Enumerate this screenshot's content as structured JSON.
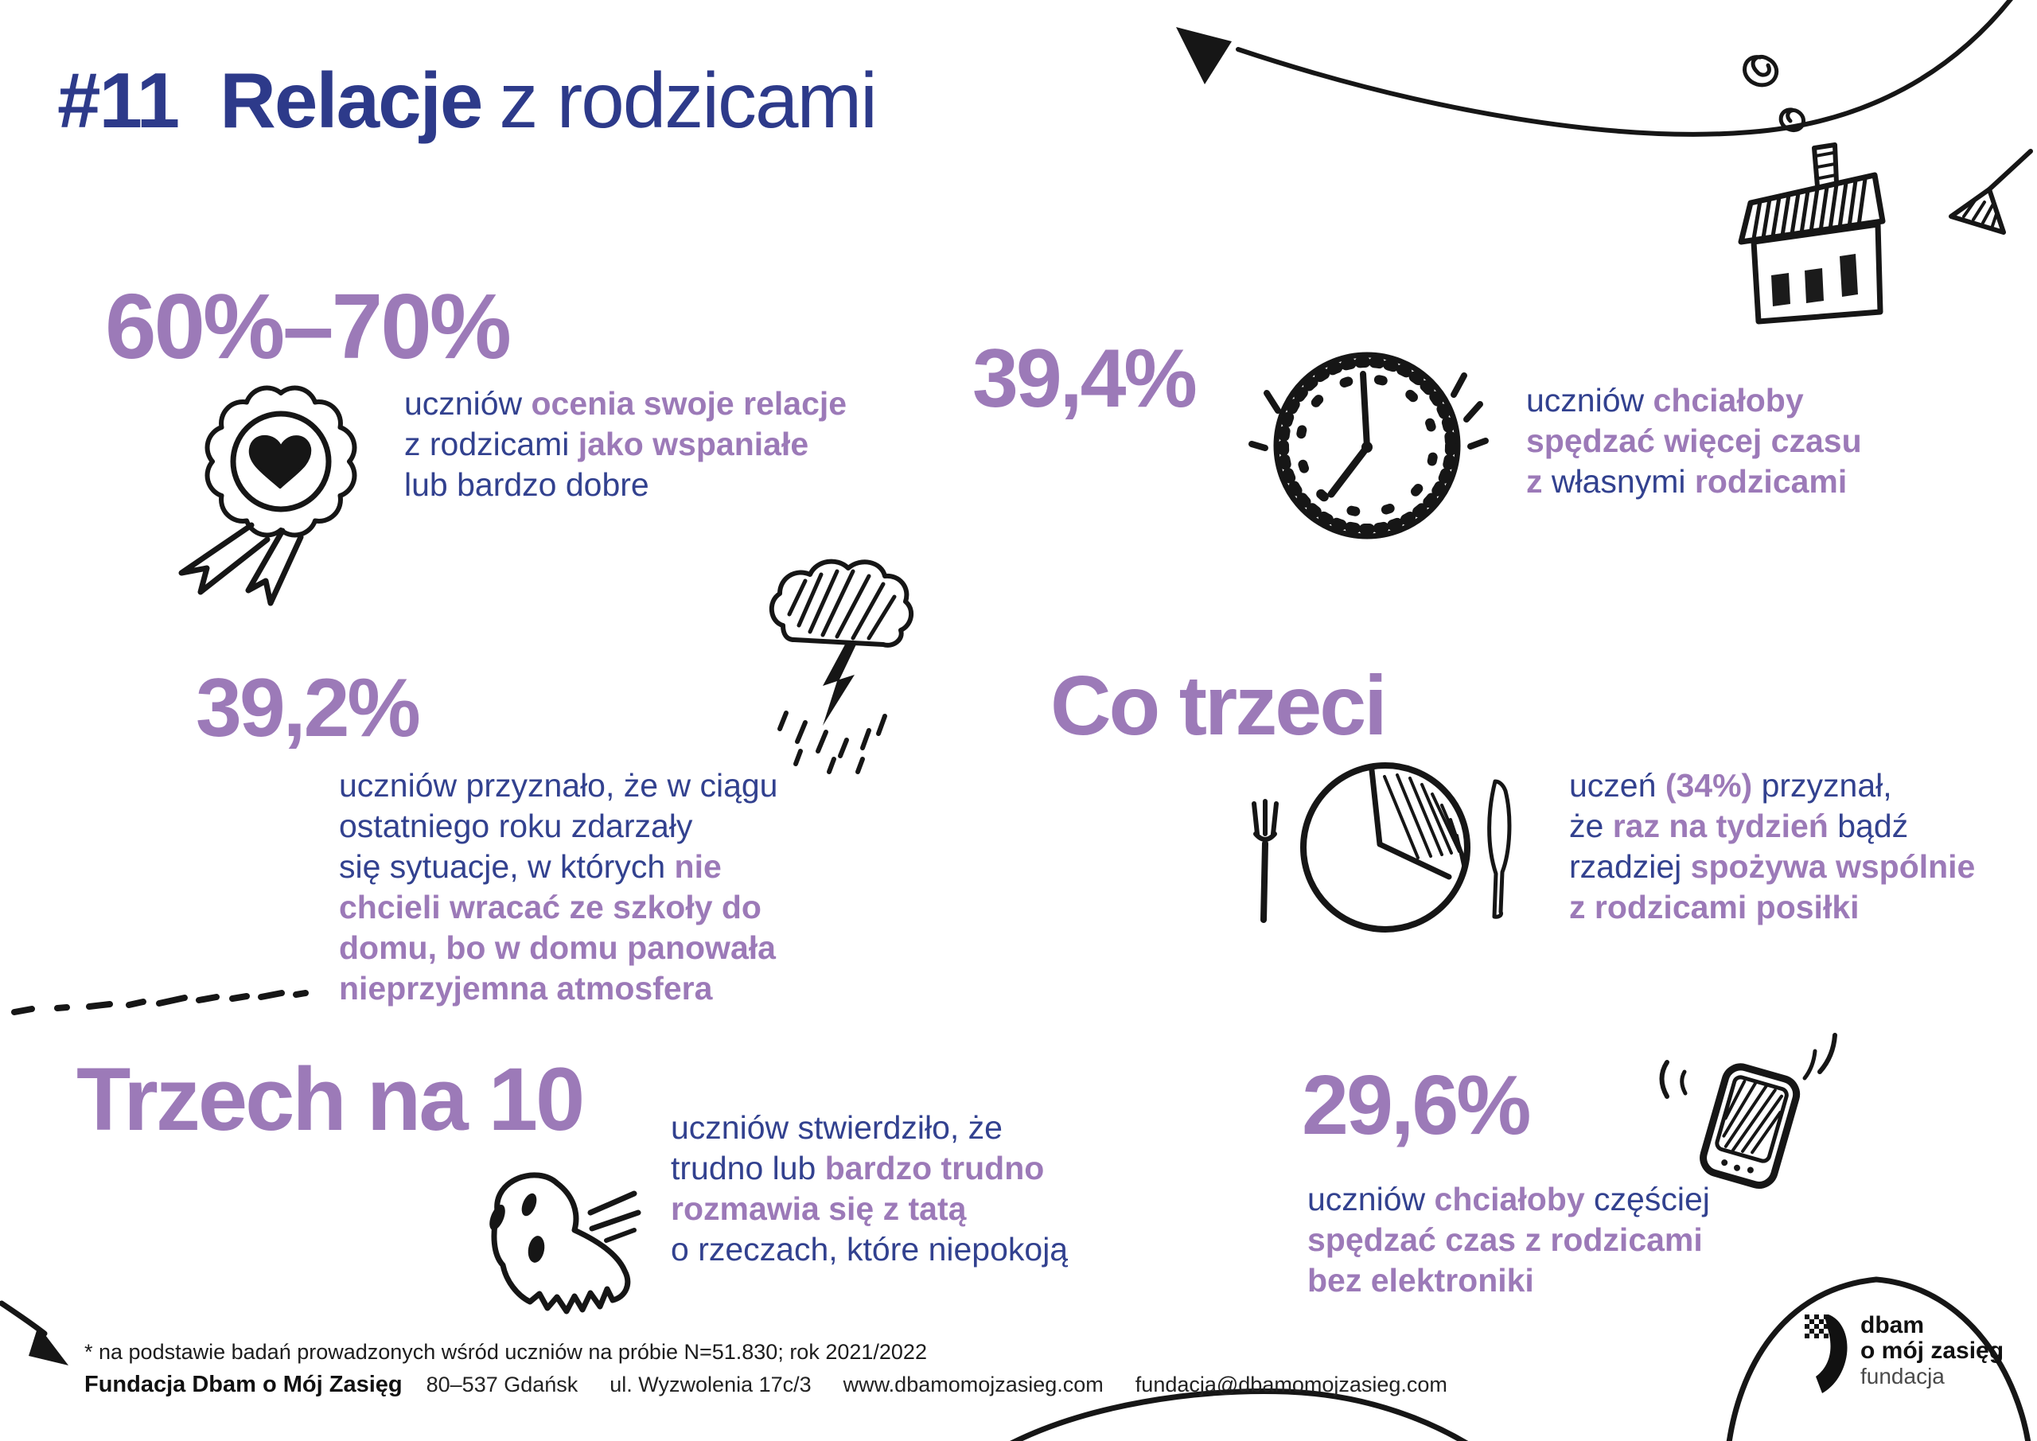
{
  "title": {
    "hash": "#11",
    "rest": "Relacje",
    "light": "z rodzicami"
  },
  "stats": [
    {
      "id": "relations-quality",
      "value": "60%–70%",
      "icon": "rosette-icon",
      "lines": [
        [
          {
            "t": "uczniów ",
            "b": false
          },
          {
            "t": "ocenia swoje relacje",
            "b": true
          }
        ],
        [
          {
            "t": "z rodzicami ",
            "b": false
          },
          {
            "t": "jako wspaniałe",
            "b": true
          }
        ],
        [
          {
            "t": "lub bardzo dobre",
            "b": false
          }
        ]
      ]
    },
    {
      "id": "more-time-with-parents",
      "value": "39,4%",
      "icon": "clock-icon",
      "lines": [
        [
          {
            "t": "uczniów ",
            "b": false
          },
          {
            "t": "chciałoby",
            "b": true
          }
        ],
        [
          {
            "t": "spędzać więcej czasu",
            "b": true
          }
        ],
        [
          {
            "t": "z ",
            "b": true
          },
          {
            "t": "własnymi ",
            "b": false
          },
          {
            "t": "rodzicami",
            "b": true
          }
        ]
      ]
    },
    {
      "id": "not-wanting-to-return-home",
      "value": "39,2%",
      "icon": "storm-cloud-icon",
      "lines": [
        [
          {
            "t": "uczniów przyznało, że w ciągu",
            "b": false
          }
        ],
        [
          {
            "t": "ostatniego roku zdarzały",
            "b": false
          }
        ],
        [
          {
            "t": "się sytuacje, w których ",
            "b": false
          },
          {
            "t": "nie",
            "b": true
          }
        ],
        [
          {
            "t": "chcieli wracać ze szkoły do",
            "b": true
          }
        ],
        [
          {
            "t": "domu, bo w domu panowała",
            "b": true
          }
        ],
        [
          {
            "t": "nieprzyjemna atmosfera",
            "b": true
          }
        ]
      ]
    },
    {
      "id": "meals-with-parents",
      "value": "Co trzeci",
      "icon": "plate-icon",
      "lines": [
        [
          {
            "t": "uczeń ",
            "b": false
          },
          {
            "t": "(34%)",
            "b": true
          },
          {
            "t": " przyznał,",
            "b": false
          }
        ],
        [
          {
            "t": "że ",
            "b": false
          },
          {
            "t": "raz na tydzień",
            "b": true
          },
          {
            "t": " bądź",
            "b": false
          }
        ],
        [
          {
            "t": "rzadziej ",
            "b": false
          },
          {
            "t": "spożywa wspólnie",
            "b": true
          }
        ],
        [
          {
            "t": "z rodzicami posiłki",
            "b": true
          }
        ]
      ]
    },
    {
      "id": "hard-to-talk-with-dad",
      "value": "Trzech na 10",
      "icon": "ghost-icon",
      "lines": [
        [
          {
            "t": "uczniów stwierdziło, że",
            "b": false
          }
        ],
        [
          {
            "t": "trudno lub ",
            "b": false
          },
          {
            "t": "bardzo trudno",
            "b": true
          }
        ],
        [
          {
            "t": "rozmawia się z tatą",
            "b": true
          }
        ],
        [
          {
            "t": "o rzeczach, które niepokoją",
            "b": false
          }
        ]
      ]
    },
    {
      "id": "time-without-electronics",
      "value": "29,6%",
      "icon": "phone-icon",
      "lines": [
        [
          {
            "t": "uczniów ",
            "b": false
          },
          {
            "t": "chciałoby",
            "b": true
          },
          {
            "t": " częściej",
            "b": false
          }
        ],
        [
          {
            "t": "spędzać czas z rodzicami",
            "b": true
          }
        ],
        [
          {
            "t": "bez elektroniki",
            "b": true
          }
        ]
      ]
    }
  ],
  "footnote": "* na podstawie badań prowadzonych wśród uczniów na próbie N=51.830; rok 2021/2022",
  "footer": {
    "org": "Fundacja Dbam o Mój Zasięg",
    "items": [
      "80–537 Gdańsk",
      "ul. Wyzwolenia 17c/3",
      "www.dbamomojzasieg.com",
      "fundacja@dbamomojzasieg.com"
    ]
  },
  "logo": {
    "line1": "dbam",
    "line2": "o mój zasięg",
    "line3": "fundacja"
  },
  "colors": {
    "navy": "#2d3a8a",
    "body_navy": "#32418f",
    "purple": "#9c7ab8",
    "ink": "#161616"
  }
}
